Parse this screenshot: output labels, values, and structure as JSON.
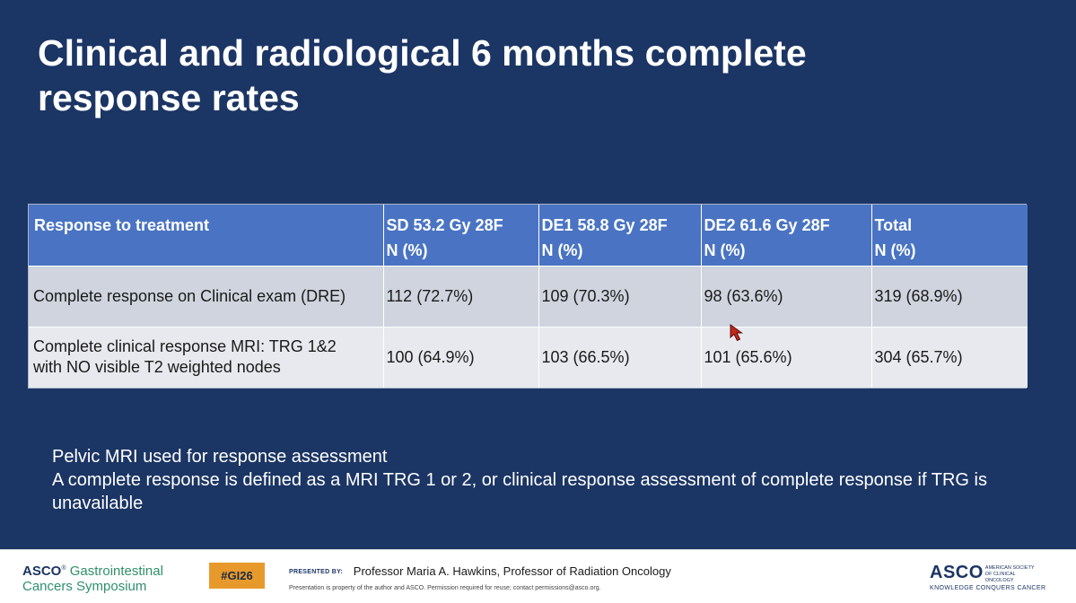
{
  "slide": {
    "title_lines": [
      "Clinical and radiological 6 months complete",
      "response rates"
    ]
  },
  "table": {
    "headers": [
      {
        "lines": [
          "Response to treatment"
        ]
      },
      {
        "lines": [
          "SD  53.2 Gy 28F",
          "N (%)"
        ]
      },
      {
        "lines": [
          "DE1 58.8 Gy 28F",
          "N (%)"
        ]
      },
      {
        "lines": [
          "DE2 61.6 Gy 28F",
          "N (%)"
        ]
      },
      {
        "lines": [
          "Total",
          "N (%)"
        ]
      }
    ],
    "rows": [
      {
        "label_lines": [
          "Complete response on Clinical exam (DRE)"
        ],
        "values": [
          "112 (72.7%)",
          "109 (70.3%)",
          "98 (63.6%)",
          "319 (68.9%)"
        ]
      },
      {
        "label_lines": [
          "Complete clinical response MRI: TRG 1&2",
          "with NO visible T2 weighted nodes"
        ],
        "values": [
          "100 (64.9%)",
          "103 (66.5%)",
          "101 (65.6%)",
          "304 (65.7%)"
        ]
      }
    ]
  },
  "notes": {
    "line1": "Pelvic MRI used  for response assessment",
    "line2": "A complete response is defined as a MRI TRG 1 or 2, or clinical response assessment of complete response if TRG is unavailable"
  },
  "footer": {
    "logo_asco": "ASCO",
    "logo_sup": "®",
    "logo_line1": "Gastrointestinal",
    "logo_line2": "Cancers Symposium",
    "hashtag": "#GI26",
    "presented_by": "PRESENTED BY:",
    "presenter": "Professor Maria A. Hawkins, Professor of Radiation Oncology",
    "disclaimer": "Presentation is property of the author and ASCO. Permission required for reuse; contact permissions@asco.org.",
    "asco_right": "ASCO",
    "asco_right_sup": "®",
    "asco_right_small": "AMERICAN SOCIETY OF CLINICAL ONCOLOGY",
    "asco_tagline": "KNOWLEDGE CONQUERS CANCER"
  },
  "colors": {
    "slide_bg": "#1b3564",
    "table_header": "#4a74c3",
    "row1": "#cfd4de",
    "row2": "#e7e9ee",
    "hashtag_bg": "#e79a2b",
    "cursor": "#c0281b"
  }
}
